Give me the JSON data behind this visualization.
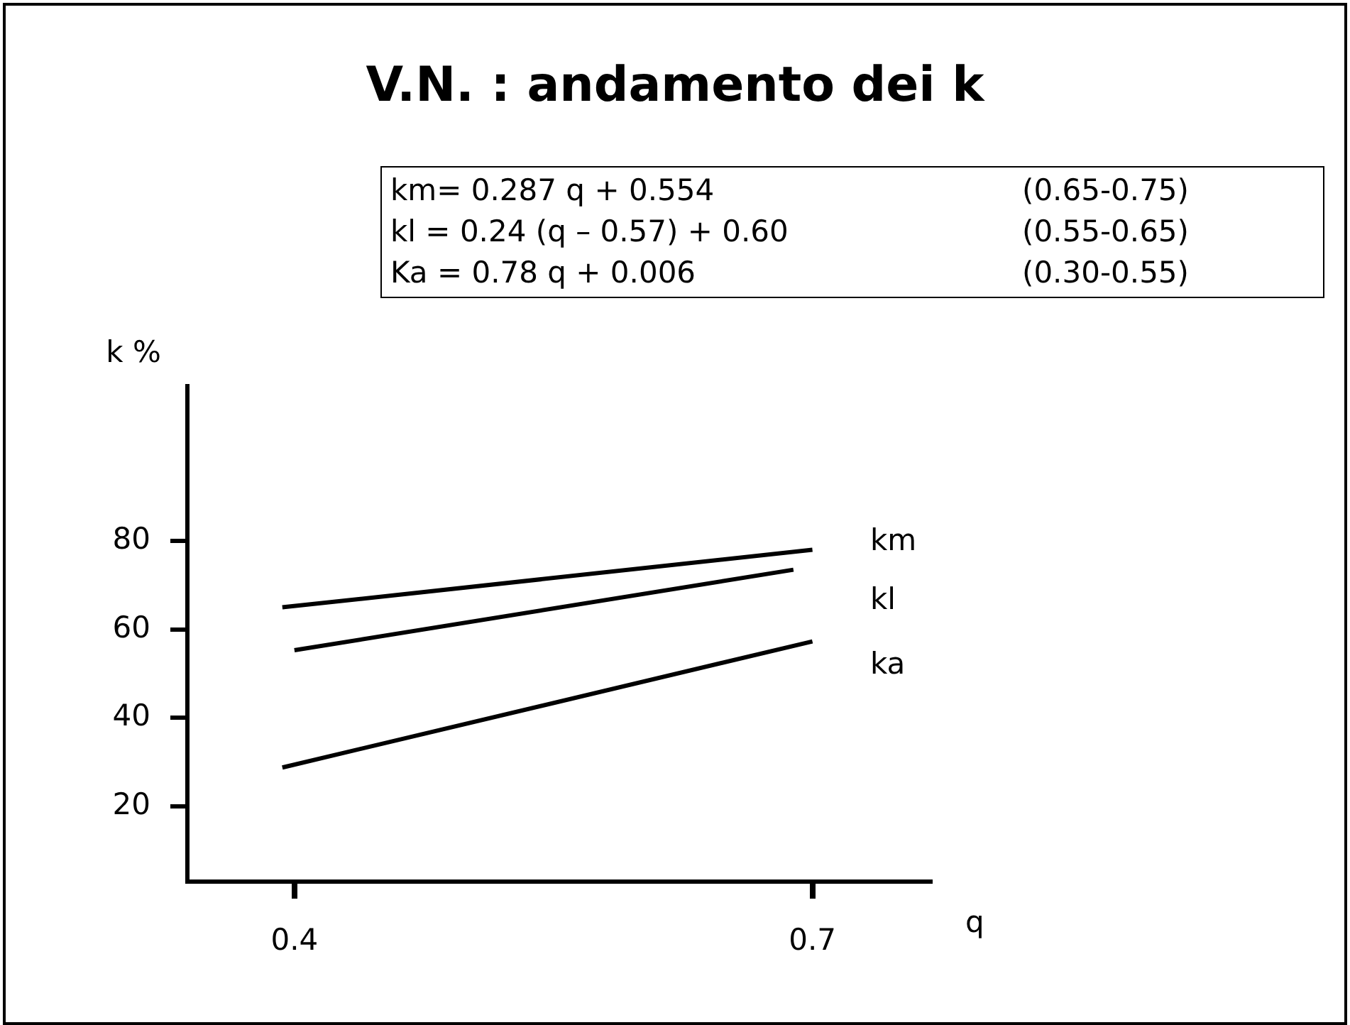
{
  "chart_data": {
    "type": "line",
    "title": "V.N. : andamento dei k",
    "xlabel": "q",
    "ylabel": "k %",
    "annotations": [
      "km= 0.287 q + 0.554",
      "(0.65-0.75)",
      "kl  = 0.24 (q – 0.57) + 0.60",
      "(0.55-0.65)",
      "Ka = 0.78 q + 0.006",
      "(0.30-0.55)"
    ],
    "xlim": [
      0.338,
      0.768
    ],
    "xticks": [
      0.4,
      0.7
    ],
    "ylim": [
      3,
      115
    ],
    "yticks": [
      20,
      40,
      60,
      80
    ],
    "grid": false,
    "legend": false,
    "marker": "none",
    "line_style": "solid",
    "series": [
      {
        "name": "km",
        "color": "#000000",
        "x": [
          0.393,
          0.7
        ],
        "values": [
          65,
          78
        ]
      },
      {
        "name": "kl",
        "color": "#000000",
        "x": [
          0.4,
          0.689
        ],
        "values": [
          55.3,
          73.5
        ]
      },
      {
        "name": "ka",
        "color": "#000000",
        "x": [
          0.393,
          0.7
        ],
        "values": [
          28.8,
          57.3
        ]
      }
    ]
  }
}
